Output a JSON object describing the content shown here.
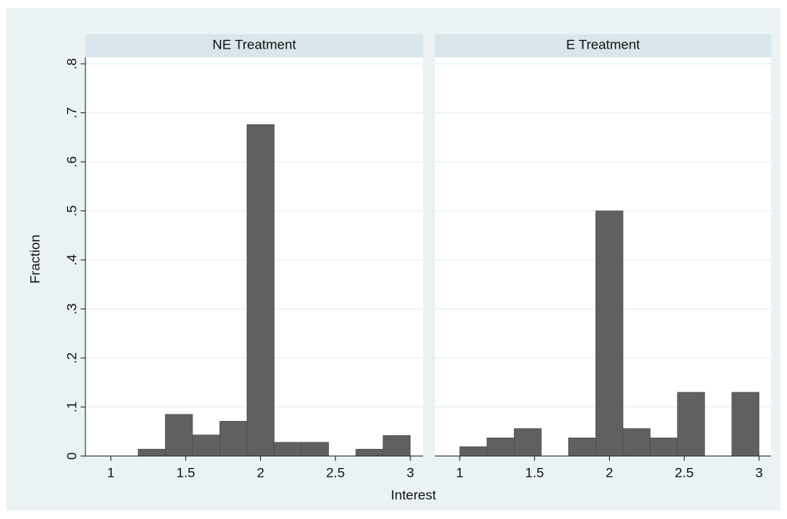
{
  "axis_titles": {
    "x": "Interest",
    "y": "Fraction"
  },
  "chart_data": [
    {
      "type": "histogram",
      "title": "NE Treatment",
      "color": "#606060",
      "bins": [
        1,
        1.1818,
        1.3636,
        1.5455,
        1.7273,
        1.9091,
        2.0909,
        2.2727,
        2.4545,
        2.6364,
        2.8182,
        3
      ],
      "values": [
        0,
        0.014,
        0.085,
        0.043,
        0.071,
        0.676,
        0.028,
        0.028,
        0,
        0.014,
        0.042
      ],
      "xlim": [
        0.83,
        3.085
      ],
      "xticks": [
        1,
        1.5,
        2,
        2.5,
        3
      ],
      "ylim": [
        0,
        0.813
      ],
      "yticks": [
        {
          "value": 0,
          "label": "0"
        },
        {
          "value": 0.1,
          "label": ".1"
        },
        {
          "value": 0.2,
          "label": ".2"
        },
        {
          "value": 0.3,
          "label": ".3"
        },
        {
          "value": 0.4,
          "label": ".4"
        },
        {
          "value": 0.5,
          "label": ".5"
        },
        {
          "value": 0.6,
          "label": ".6"
        },
        {
          "value": 0.7,
          "label": ".7"
        },
        {
          "value": 0.8,
          "label": ".8"
        }
      ],
      "grid": true
    },
    {
      "type": "histogram",
      "title": "E Treatment",
      "color": "#606060",
      "bins": [
        1,
        1.1818,
        1.3636,
        1.5455,
        1.7273,
        1.9091,
        2.0909,
        2.2727,
        2.4545,
        2.6364,
        2.8182,
        3
      ],
      "values": [
        0.019,
        0.037,
        0.056,
        0,
        0.037,
        0.5,
        0.056,
        0.037,
        0.13,
        0,
        0.13
      ],
      "xlim": [
        0.835,
        3.08
      ],
      "xticks": [
        1,
        1.5,
        2,
        2.5,
        3
      ],
      "grid": true
    }
  ]
}
